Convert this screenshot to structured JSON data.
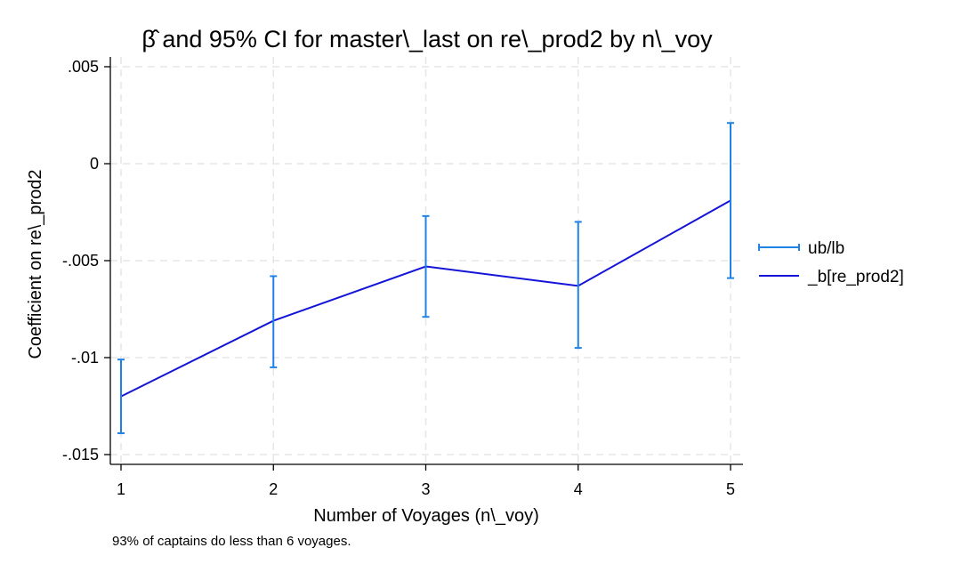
{
  "chart_data": {
    "type": "line",
    "title": "β̂ and 95% CI for master\\_last on re\\_prod2 by n\\_voy",
    "xlabel": "Number of Voyages (n\\_voy)",
    "ylabel": "Coefficient on re\\_prod2",
    "note": "93% of captains do less than 6 voyages.",
    "x": [
      1,
      2,
      3,
      4,
      5
    ],
    "xticks": [
      "1",
      "2",
      "3",
      "4",
      "5"
    ],
    "yticks": [
      0.005,
      0,
      -0.005,
      -0.01,
      -0.015
    ],
    "ytick_labels": [
      ".005",
      "0",
      "-.005",
      "-.01",
      "-.015"
    ],
    "ylim": [
      -0.0155,
      0.0055
    ],
    "grid": true,
    "legend_position": "right",
    "series": [
      {
        "name": "ub/lb",
        "kind": "errorbar",
        "color": "#1f82e6",
        "lower": [
          -0.0139,
          -0.0105,
          -0.0079,
          -0.0095,
          -0.0059
        ],
        "upper": [
          -0.0101,
          -0.0058,
          -0.0027,
          -0.003,
          0.0021
        ]
      },
      {
        "name": "_b[re_prod2]",
        "kind": "line",
        "color": "#1414d8",
        "values": [
          -0.012,
          -0.0081,
          -0.0053,
          -0.0063,
          -0.0019
        ]
      }
    ]
  }
}
